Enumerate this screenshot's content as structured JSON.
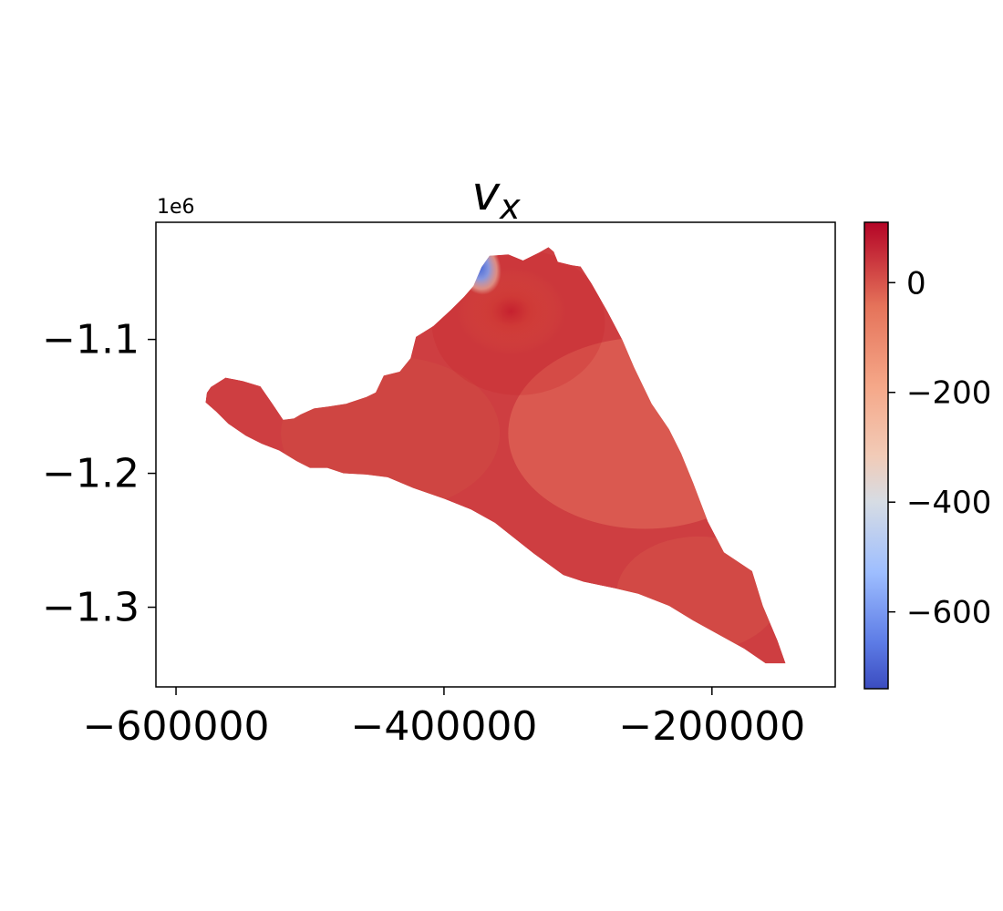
{
  "chart_data": {
    "type": "heatmap",
    "title": "v_x",
    "title_main": "v",
    "title_sub": "x",
    "xlabel": "",
    "ylabel": "",
    "y_offset_label": "1e6",
    "xlim": [
      -615000,
      -108000
    ],
    "ylim": [
      -1.3595,
      -1.0125
    ],
    "x_ticks": [
      -600000,
      -400000,
      -200000
    ],
    "x_tick_labels": [
      "−600000",
      "−400000",
      "−200000"
    ],
    "y_ticks": [
      -1.1,
      -1.2,
      -1.3
    ],
    "y_tick_labels": [
      "−1.1",
      "−1.2",
      "−1.3"
    ],
    "colormap": "coolwarm",
    "colorbar": {
      "range": [
        -740,
        110
      ],
      "ticks": [
        0,
        -200,
        -400,
        -600
      ],
      "tick_labels": [
        "0",
        "−200",
        "−400",
        "−600"
      ]
    },
    "base_value": 30,
    "domain_outline": [
      [
        -577000,
        -1.1398
      ],
      [
        -574000,
        -1.1355
      ],
      [
        -563000,
        -1.1285
      ],
      [
        -550000,
        -1.131
      ],
      [
        -537000,
        -1.135
      ],
      [
        -528000,
        -1.148
      ],
      [
        -520000,
        -1.16
      ],
      [
        -512000,
        -1.159
      ],
      [
        -507000,
        -1.156
      ],
      [
        -497000,
        -1.1515
      ],
      [
        -486000,
        -1.15
      ],
      [
        -473000,
        -1.148
      ],
      [
        -458000,
        -1.143
      ],
      [
        -451000,
        -1.1395
      ],
      [
        -445000,
        -1.127
      ],
      [
        -433000,
        -1.124
      ],
      [
        -425000,
        -1.114
      ],
      [
        -421000,
        -1.098
      ],
      [
        -408000,
        -1.09
      ],
      [
        -395000,
        -1.078
      ],
      [
        -385000,
        -1.068
      ],
      [
        -378000,
        -1.06
      ],
      [
        -372000,
        -1.046
      ],
      [
        -366000,
        -1.0375
      ],
      [
        -352000,
        -1.0365
      ],
      [
        -341000,
        -1.041
      ],
      [
        -329000,
        -1.035
      ],
      [
        -322000,
        -1.031
      ],
      [
        -318000,
        -1.0345
      ],
      [
        -315000,
        -1.042
      ],
      [
        -305000,
        -1.0445
      ],
      [
        -298000,
        -1.0455
      ],
      [
        -290000,
        -1.058
      ],
      [
        -278000,
        -1.079
      ],
      [
        -267000,
        -1.1
      ],
      [
        -258000,
        -1.121
      ],
      [
        -245000,
        -1.148
      ],
      [
        -232000,
        -1.167
      ],
      [
        -223000,
        -1.185
      ],
      [
        -214000,
        -1.207
      ],
      [
        -203000,
        -1.236
      ],
      [
        -191000,
        -1.259
      ],
      [
        -170000,
        -1.273
      ],
      [
        -162000,
        -1.299
      ],
      [
        -151000,
        -1.325
      ],
      [
        -145000,
        -1.342
      ],
      [
        -160000,
        -1.342
      ],
      [
        -176000,
        -1.331
      ],
      [
        -196000,
        -1.32
      ],
      [
        -214000,
        -1.31
      ],
      [
        -232000,
        -1.299
      ],
      [
        -255000,
        -1.29
      ],
      [
        -272000,
        -1.286
      ],
      [
        -296000,
        -1.281
      ],
      [
        -311000,
        -1.276
      ],
      [
        -333000,
        -1.26
      ],
      [
        -362000,
        -1.237
      ],
      [
        -380000,
        -1.227
      ],
      [
        -400000,
        -1.219
      ],
      [
        -423000,
        -1.211
      ],
      [
        -442000,
        -1.203
      ],
      [
        -458000,
        -1.201
      ],
      [
        -475000,
        -1.2
      ],
      [
        -487000,
        -1.196
      ],
      [
        -500000,
        -1.196
      ],
      [
        -510000,
        -1.191
      ],
      [
        -523000,
        -1.183
      ],
      [
        -536000,
        -1.178
      ],
      [
        -548000,
        -1.172
      ],
      [
        -561000,
        -1.163
      ],
      [
        -570000,
        -1.154
      ],
      [
        -578000,
        -1.147
      ]
    ],
    "features": [
      {
        "kind": "positive_peak",
        "x": -350000,
        "y": -1.079,
        "value": 110
      },
      {
        "kind": "negative_peak",
        "x": -377000,
        "y": -1.044,
        "value": -740
      }
    ]
  }
}
